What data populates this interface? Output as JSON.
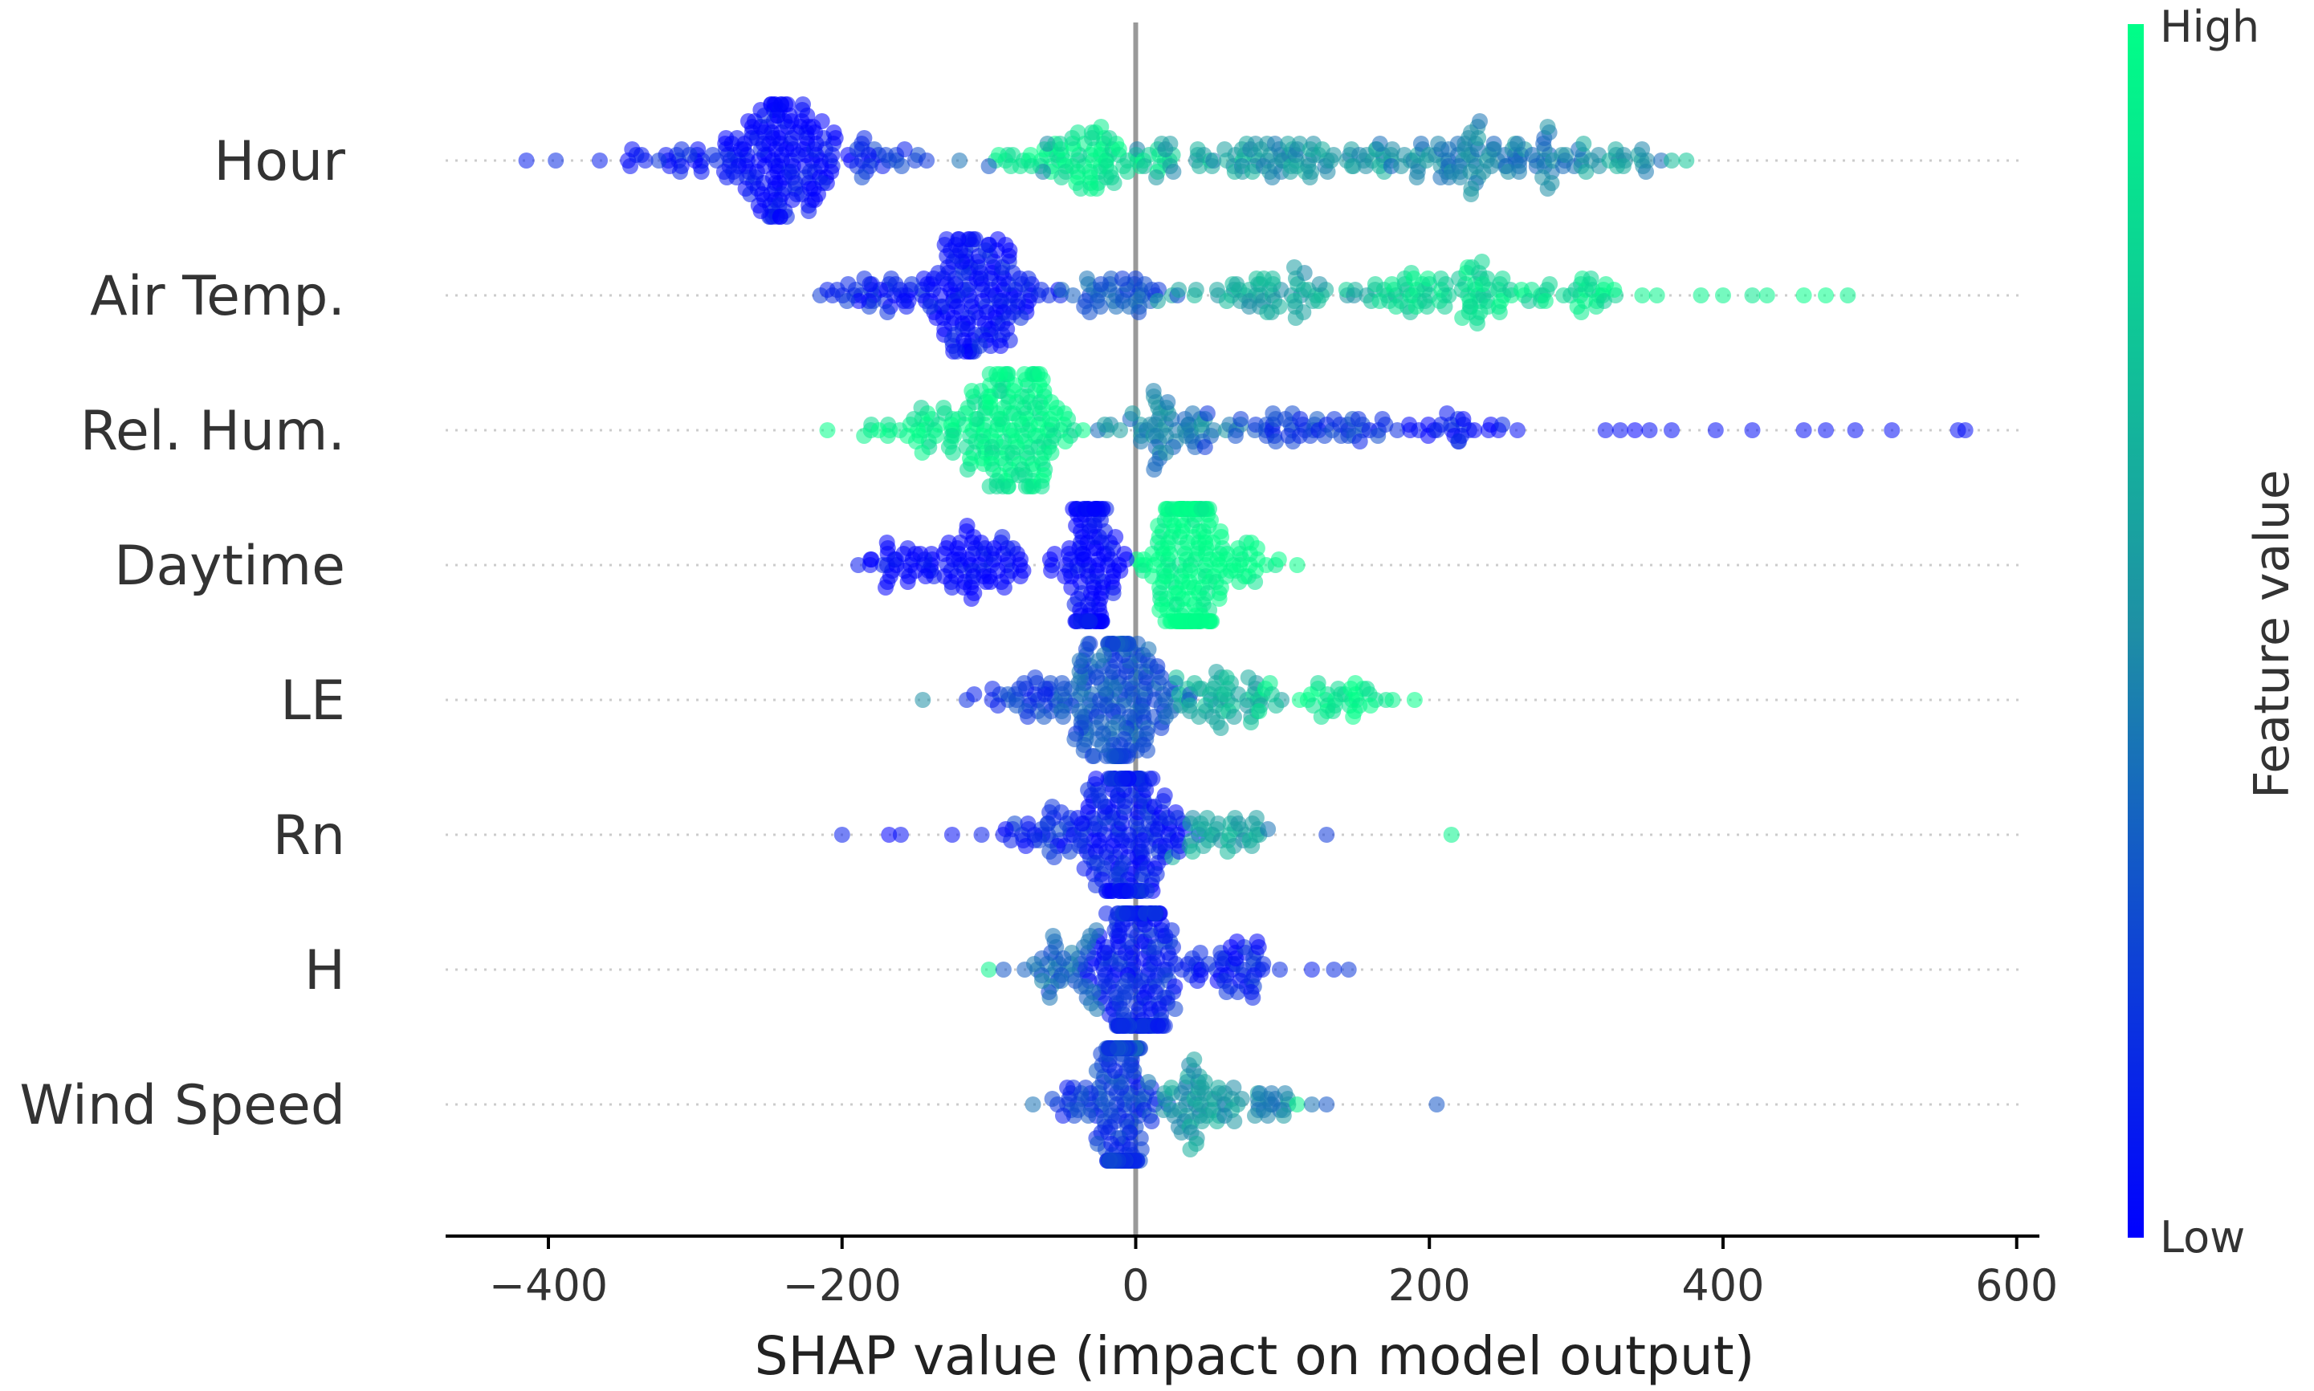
{
  "chart_data": {
    "type": "scatter",
    "subtype": "shap-beeswarm",
    "title": "",
    "xlabel": "SHAP value (impact on model output)",
    "ylabel": "",
    "xlim": [
      -470,
      610
    ],
    "xticks": [
      -400,
      -200,
      0,
      200,
      400,
      600
    ],
    "xtick_labels": [
      "−400",
      "−200",
      "0",
      "200",
      "400",
      "600"
    ],
    "zero_line": true,
    "grid": false,
    "colorbar": {
      "label": "Feature value",
      "high_label": "High",
      "low_label": "Low",
      "high_color": "#00ff88",
      "low_color": "#0000ff",
      "mid_color": "#1e8fa5"
    },
    "features": [
      {
        "name": "Hour",
        "clusters": [
          {
            "center": -240,
            "spread": 38,
            "count": 170,
            "value": 0.02
          },
          {
            "center": -320,
            "spread": 35,
            "count": 22,
            "value": 0.1
          },
          {
            "center": -170,
            "spread": 30,
            "count": 20,
            "value": 0.15
          },
          {
            "center": -30,
            "spread": 45,
            "count": 90,
            "value": 0.9
          },
          {
            "center": 120,
            "spread": 90,
            "count": 100,
            "value": 0.55
          },
          {
            "center": 240,
            "spread": 60,
            "count": 90,
            "value": 0.45
          },
          {
            "center": 330,
            "spread": 25,
            "count": 18,
            "value": 0.55
          }
        ],
        "points": [
          {
            "x": -415,
            "v": 0.1
          },
          {
            "x": -395,
            "v": 0.15
          },
          {
            "x": -365,
            "v": 0.1
          },
          {
            "x": -120,
            "v": 0.4
          },
          {
            "x": -100,
            "v": 0.3
          },
          {
            "x": 365,
            "v": 0.7
          },
          {
            "x": 375,
            "v": 0.75
          }
        ]
      },
      {
        "name": "Air Temp.",
        "clusters": [
          {
            "center": -110,
            "spread": 40,
            "count": 170,
            "value": 0.05
          },
          {
            "center": -180,
            "spread": 25,
            "count": 30,
            "value": 0.1
          },
          {
            "center": -20,
            "spread": 30,
            "count": 40,
            "value": 0.3
          },
          {
            "center": 90,
            "spread": 60,
            "count": 60,
            "value": 0.6
          },
          {
            "center": 220,
            "spread": 60,
            "count": 80,
            "value": 0.85
          },
          {
            "center": 300,
            "spread": 25,
            "count": 25,
            "value": 0.9
          }
        ],
        "points": [
          {
            "x": -210,
            "v": 0.1
          },
          {
            "x": 345,
            "v": 0.95
          },
          {
            "x": 355,
            "v": 0.95
          },
          {
            "x": 385,
            "v": 0.95
          },
          {
            "x": 400,
            "v": 0.95
          },
          {
            "x": 420,
            "v": 0.9
          },
          {
            "x": 430,
            "v": 0.95
          },
          {
            "x": 455,
            "v": 1.0
          },
          {
            "x": 470,
            "v": 1.0
          },
          {
            "x": 485,
            "v": 0.95
          }
        ]
      },
      {
        "name": "Rel. Hum.",
        "clusters": [
          {
            "center": -85,
            "spread": 35,
            "count": 170,
            "value": 0.95
          },
          {
            "center": -140,
            "spread": 30,
            "count": 30,
            "value": 0.9
          },
          {
            "center": 20,
            "spread": 40,
            "count": 60,
            "value": 0.45
          },
          {
            "center": 120,
            "spread": 50,
            "count": 50,
            "value": 0.2
          },
          {
            "center": 210,
            "spread": 30,
            "count": 25,
            "value": 0.05
          }
        ],
        "points": [
          {
            "x": -210,
            "v": 1.0
          },
          {
            "x": -185,
            "v": 0.95
          },
          {
            "x": 260,
            "v": 0.05
          },
          {
            "x": 320,
            "v": 0.05
          },
          {
            "x": 330,
            "v": 0.05
          },
          {
            "x": 340,
            "v": 0.0
          },
          {
            "x": 350,
            "v": 0.05
          },
          {
            "x": 365,
            "v": 0.05
          },
          {
            "x": 395,
            "v": 0.05
          },
          {
            "x": 420,
            "v": 0.05
          },
          {
            "x": 455,
            "v": 0.05
          },
          {
            "x": 470,
            "v": 0.05
          },
          {
            "x": 490,
            "v": 0.05
          },
          {
            "x": 515,
            "v": 0.05
          },
          {
            "x": 560,
            "v": 0.05
          },
          {
            "x": 565,
            "v": 0.05
          }
        ]
      },
      {
        "name": "Daytime",
        "clusters": [
          {
            "center": -30,
            "spread": 15,
            "count": 120,
            "value": 0.0
          },
          {
            "center": -110,
            "spread": 35,
            "count": 80,
            "value": 0.0
          },
          {
            "center": -165,
            "spread": 15,
            "count": 20,
            "value": 0.0
          },
          {
            "center": 35,
            "spread": 22,
            "count": 190,
            "value": 1.0
          },
          {
            "center": 80,
            "spread": 15,
            "count": 20,
            "value": 1.0
          }
        ],
        "points": [
          {
            "x": -180,
            "v": 0.0
          },
          {
            "x": 110,
            "v": 1.0
          }
        ]
      },
      {
        "name": "LE",
        "clusters": [
          {
            "center": -10,
            "spread": 30,
            "count": 200,
            "value": 0.3
          },
          {
            "center": -70,
            "spread": 25,
            "count": 30,
            "value": 0.2
          },
          {
            "center": 60,
            "spread": 35,
            "count": 50,
            "value": 0.65
          },
          {
            "center": 130,
            "spread": 30,
            "count": 35,
            "value": 0.95
          }
        ],
        "points": [
          {
            "x": -145,
            "v": 0.5
          },
          {
            "x": -110,
            "v": 0.1
          },
          {
            "x": 175,
            "v": 0.95
          },
          {
            "x": 190,
            "v": 1.0
          }
        ]
      },
      {
        "name": "Rn",
        "clusters": [
          {
            "center": -5,
            "spread": 28,
            "count": 200,
            "value": 0.1
          },
          {
            "center": -60,
            "spread": 25,
            "count": 35,
            "value": 0.15
          },
          {
            "center": 60,
            "spread": 22,
            "count": 35,
            "value": 0.6
          }
        ],
        "points": [
          {
            "x": -200,
            "v": 0.1
          },
          {
            "x": -168,
            "v": 0.0
          },
          {
            "x": -160,
            "v": 0.05
          },
          {
            "x": -125,
            "v": 0.05
          },
          {
            "x": -105,
            "v": 0.1
          },
          {
            "x": -85,
            "v": 0.1
          },
          {
            "x": 90,
            "v": 0.4
          },
          {
            "x": 130,
            "v": 0.2
          },
          {
            "x": 215,
            "v": 0.95
          }
        ]
      },
      {
        "name": "H",
        "clusters": [
          {
            "center": 0,
            "spread": 25,
            "count": 220,
            "value": 0.12
          },
          {
            "center": -50,
            "spread": 25,
            "count": 40,
            "value": 0.35
          },
          {
            "center": 70,
            "spread": 30,
            "count": 45,
            "value": 0.1
          }
        ],
        "points": [
          {
            "x": -100,
            "v": 0.95
          },
          {
            "x": -90,
            "v": 0.3
          },
          {
            "x": 120,
            "v": 0.1
          },
          {
            "x": 135,
            "v": 0.15
          },
          {
            "x": 145,
            "v": 0.2
          }
        ]
      },
      {
        "name": "Wind Speed",
        "clusters": [
          {
            "center": -10,
            "spread": 14,
            "count": 200,
            "value": 0.2
          },
          {
            "center": 40,
            "spread": 25,
            "count": 60,
            "value": 0.55
          },
          {
            "center": 90,
            "spread": 18,
            "count": 20,
            "value": 0.5
          },
          {
            "center": -45,
            "spread": 10,
            "count": 15,
            "value": 0.2
          }
        ],
        "points": [
          {
            "x": -70,
            "v": 0.4
          },
          {
            "x": 110,
            "v": 0.95
          },
          {
            "x": 120,
            "v": 0.4
          },
          {
            "x": 130,
            "v": 0.3
          },
          {
            "x": 205,
            "v": 0.3
          }
        ]
      }
    ]
  }
}
